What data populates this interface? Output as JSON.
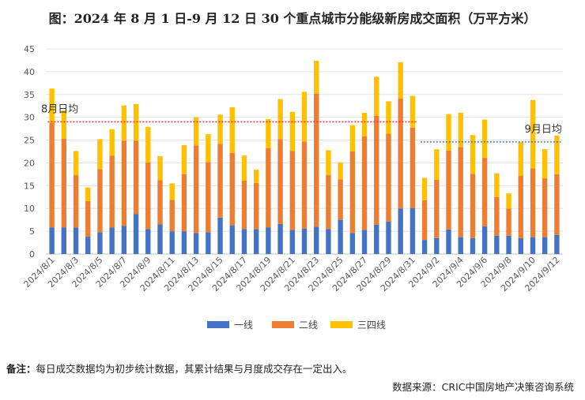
{
  "title": "图：2024 年 8 月 1 日-9 月 12 日 30 个重点城市分能级新房成交面积（万平方米）",
  "note_label": "备注：",
  "note_text": "每日成交数据均为初步统计数据，其累计结果与月度成交存在一定出入。",
  "source": "数据来源：CRIC中国房地产决策咨询系统",
  "chart_data": {
    "type": "bar",
    "stacked": true,
    "title": "图：2024 年 8 月 1 日-9 月 12 日 30 个重点城市分能级新房成交面积（万平方米）",
    "ylim": [
      0,
      45
    ],
    "yticks": [
      0,
      5,
      10,
      15,
      20,
      25,
      30,
      35,
      40,
      45
    ],
    "grid": true,
    "legend": "bottom",
    "categories": [
      "2024/8/1",
      "2024/8/2",
      "2024/8/3",
      "2024/8/4",
      "2024/8/5",
      "2024/8/6",
      "2024/8/7",
      "2024/8/8",
      "2024/8/9",
      "2024/8/10",
      "2024/8/11",
      "2024/8/12",
      "2024/8/13",
      "2024/8/14",
      "2024/8/15",
      "2024/8/16",
      "2024/8/17",
      "2024/8/18",
      "2024/8/19",
      "2024/8/20",
      "2024/8/21",
      "2024/8/22",
      "2024/8/23",
      "2024/8/24",
      "2024/8/25",
      "2024/8/26",
      "2024/8/27",
      "2024/8/28",
      "2024/8/29",
      "2024/8/30",
      "2024/8/31",
      "2024/9/1",
      "2024/9/2",
      "2024/9/3",
      "2024/9/4",
      "2024/9/5",
      "2024/9/6",
      "2024/9/7",
      "2024/9/8",
      "2024/9/9",
      "2024/9/10",
      "2024/9/11",
      "2024/9/12"
    ],
    "tick_labels": [
      "2024/8/1",
      "2024/8/3",
      "2024/8/5",
      "2024/8/7",
      "2024/8/9",
      "2024/8/11",
      "2024/8/13",
      "2024/8/15",
      "2024/8/17",
      "2024/8/19",
      "2024/8/21",
      "2024/8/23",
      "2024/8/25",
      "2024/8/27",
      "2024/8/29",
      "2024/8/31",
      "2024/9/2",
      "2024/9/4",
      "2024/9/6",
      "2024/9/8",
      "2024/9/10",
      "2024/9/12"
    ],
    "series": [
      {
        "name": "一线",
        "color": "#4472C4",
        "values": [
          5.8,
          5.8,
          5.8,
          3.8,
          4.8,
          5.8,
          6.2,
          8.8,
          5.5,
          6.5,
          5.0,
          5.0,
          4.6,
          4.8,
          8.0,
          6.3,
          5.5,
          5.5,
          5.8,
          6.6,
          5.3,
          5.6,
          6.0,
          5.5,
          7.5,
          4.6,
          5.3,
          6.4,
          7.1,
          10.0,
          10.1,
          3.1,
          3.5,
          5.4,
          3.7,
          3.5,
          6.1,
          4.0,
          4.0,
          3.5,
          3.7,
          3.7,
          4.2
        ]
      },
      {
        "name": "二线",
        "color": "#ED7D31",
        "values": [
          23.0,
          19.5,
          11.5,
          7.8,
          13.8,
          15.8,
          18.7,
          16.1,
          14.6,
          9.7,
          6.9,
          12.5,
          19.2,
          15.4,
          16.2,
          15.9,
          10.6,
          10.1,
          17.4,
          18.6,
          17.3,
          19.1,
          29.2,
          11.8,
          8.9,
          17.9,
          20.5,
          23.9,
          19.3,
          24.1,
          17.6,
          8.7,
          12.8,
          17.3,
          19.8,
          14.1,
          15.0,
          8.5,
          6.0,
          13.7,
          15.1,
          12.9,
          13.3
        ]
      },
      {
        "name": "三四线",
        "color": "#FFC000",
        "values": [
          7.5,
          6.2,
          5.3,
          3.0,
          6.6,
          5.8,
          7.7,
          8.0,
          7.8,
          5.3,
          3.6,
          6.4,
          6.2,
          6.1,
          6.4,
          10.0,
          5.5,
          2.9,
          6.4,
          8.8,
          8.6,
          10.9,
          7.2,
          5.5,
          3.7,
          5.8,
          5.2,
          8.6,
          7.1,
          8.0,
          7.0,
          4.9,
          6.7,
          8.0,
          7.5,
          8.5,
          8.4,
          5.2,
          3.3,
          7.3,
          15.0,
          6.4,
          8.5
        ]
      }
    ],
    "annotations": [
      {
        "text": "8月日均",
        "value": 29.0,
        "start": "2024/8/1",
        "end": "2024/8/31",
        "color": "#E8364F"
      },
      {
        "text": "9月日均",
        "value": 24.6,
        "start": "2024/9/1",
        "end": "2024/9/12",
        "color": "#4472C4"
      }
    ]
  }
}
